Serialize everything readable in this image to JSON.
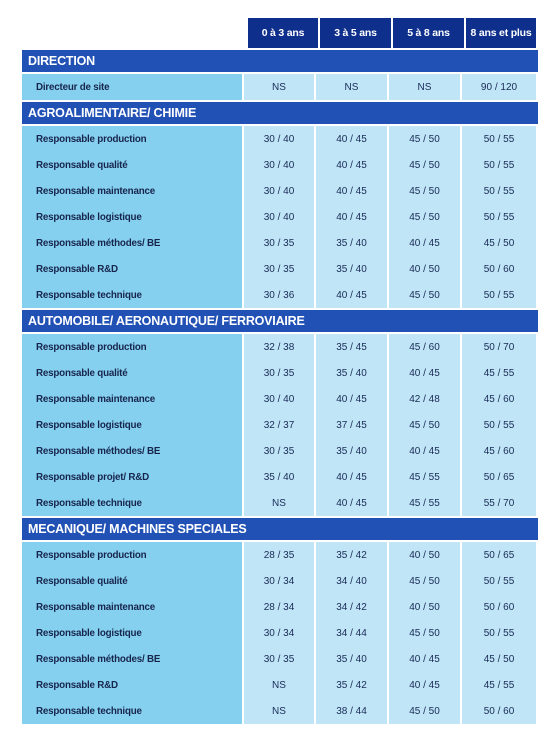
{
  "columns": [
    "0 à 3 ans",
    "3 à 5 ans",
    "5 à 8 ans",
    "8 ans et plus"
  ],
  "sections": [
    {
      "title": "DIRECTION",
      "rows": [
        {
          "label": "Directeur de site",
          "values": [
            "NS",
            "NS",
            "NS",
            "90 / 120"
          ]
        }
      ]
    },
    {
      "title": "AGROALIMENTAIRE/ CHIMIE",
      "rows": [
        {
          "label": "Responsable production",
          "values": [
            "30 / 40",
            "40 / 45",
            "45 / 50",
            "50 / 55"
          ]
        },
        {
          "label": "Responsable qualité",
          "values": [
            "30 / 40",
            "40 / 45",
            "45 / 50",
            "50 / 55"
          ]
        },
        {
          "label": "Responsable maintenance",
          "values": [
            "30 / 40",
            "40 / 45",
            "45 / 50",
            "50 / 55"
          ]
        },
        {
          "label": "Responsable logistique",
          "values": [
            "30 / 40",
            "40 / 45",
            "45 / 50",
            "50 / 55"
          ]
        },
        {
          "label": "Responsable méthodes/ BE",
          "values": [
            "30 / 35",
            "35 / 40",
            "40 / 45",
            "45 / 50"
          ]
        },
        {
          "label": "Responsable R&D",
          "values": [
            "30 / 35",
            "35 / 40",
            "40 / 50",
            "50 / 60"
          ]
        },
        {
          "label": "Responsable technique",
          "values": [
            "30 / 36",
            "40 / 45",
            "45 / 50",
            "50 / 55"
          ]
        }
      ]
    },
    {
      "title": "AUTOMOBILE/ AERONAUTIQUE/ FERROVIAIRE",
      "rows": [
        {
          "label": "Responsable production",
          "values": [
            "32 / 38",
            "35 / 45",
            "45 / 60",
            "50 / 70"
          ]
        },
        {
          "label": "Responsable qualité",
          "values": [
            "30 / 35",
            "35 / 40",
            "40 / 45",
            "45 / 55"
          ]
        },
        {
          "label": "Responsable maintenance",
          "values": [
            "30 / 40",
            "40 / 45",
            "42 / 48",
            "45 / 60"
          ]
        },
        {
          "label": "Responsable logistique",
          "values": [
            "32 / 37",
            "37 / 45",
            "45 / 50",
            "50 / 55"
          ]
        },
        {
          "label": "Responsable méthodes/ BE",
          "values": [
            "30 / 35",
            "35 / 40",
            "40 / 45",
            "45 / 60"
          ]
        },
        {
          "label": "Responsable projet/ R&D",
          "values": [
            "35 / 40",
            "40 / 45",
            "45 / 55",
            "50 / 65"
          ]
        },
        {
          "label": "Responsable technique",
          "values": [
            "NS",
            "40 / 45",
            "45 / 55",
            "55 / 70"
          ]
        }
      ]
    },
    {
      "title": "MECANIQUE/ MACHINES SPECIALES",
      "rows": [
        {
          "label": "Responsable production",
          "values": [
            "28 / 35",
            "35 / 42",
            "40 / 50",
            "50 / 65"
          ]
        },
        {
          "label": "Responsable qualité",
          "values": [
            "30 / 34",
            "34 / 40",
            "45 / 50",
            "50 / 55"
          ]
        },
        {
          "label": "Responsable maintenance",
          "values": [
            "28 / 34",
            "34 / 42",
            "40 / 50",
            "50 / 60"
          ]
        },
        {
          "label": "Responsable logistique",
          "values": [
            "30 / 34",
            "34 / 44",
            "45 / 50",
            "50 / 55"
          ]
        },
        {
          "label": "Responsable méthodes/ BE",
          "values": [
            "30 / 35",
            "35 / 40",
            "40 / 45",
            "45 / 50"
          ]
        },
        {
          "label": "Responsable R&D",
          "values": [
            "NS",
            "35 / 42",
            "40 / 45",
            "45 / 55"
          ]
        },
        {
          "label": "Responsable technique",
          "values": [
            "NS",
            "38 / 44",
            "45 / 50",
            "50 / 60"
          ]
        }
      ]
    }
  ]
}
